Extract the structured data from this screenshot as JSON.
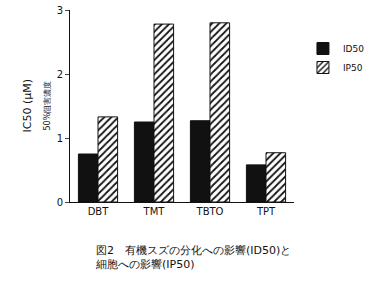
{
  "chart_data": {
    "type": "bar",
    "title": "図2　有機スズの分化への影響(ID50)と\n細胞への影響(IP50)",
    "y_label": "IC50 (μM)",
    "y_label_secondary": "50%阻害濃度",
    "categories": [
      "DBT",
      "TMT",
      "TBTO",
      "TPT"
    ],
    "series": [
      {
        "name": "ID50",
        "color": "#111111",
        "marker": "solid",
        "values": [
          0.75,
          1.25,
          1.27,
          0.58
        ]
      },
      {
        "name": "IP50",
        "color": "#111111",
        "marker": "hatch",
        "values": [
          1.33,
          2.78,
          2.8,
          0.77
        ]
      }
    ],
    "ylim": [
      0,
      3
    ],
    "yticks": [
      0,
      1,
      2,
      3
    ],
    "grid": false,
    "legend": "right"
  }
}
